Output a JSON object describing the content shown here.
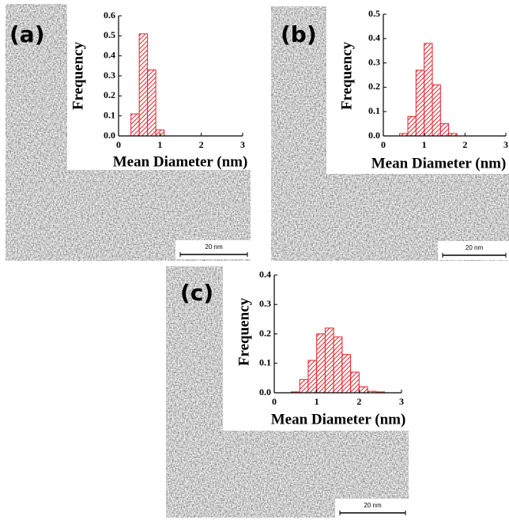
{
  "chart_data": [
    {
      "type": "histogram",
      "panel_label": "(a)",
      "scale_bar": "20 nm",
      "xlabel": "Mean Diameter (nm)",
      "ylabel": "Frequency",
      "bins": [
        0.3,
        0.5,
        0.7,
        0.9,
        1.1
      ],
      "counts": [
        0.11,
        0.51,
        0.33,
        0.03
      ],
      "color": "#e8202a",
      "xlim": [
        0,
        3
      ],
      "ylim": [
        0,
        0.6
      ],
      "xticks": [
        0,
        1,
        2,
        3
      ],
      "yticks": [
        {
          "value": 0,
          "label": "0.0"
        },
        0.1,
        0.2,
        0.3,
        0.4,
        0.5,
        0.6
      ]
    },
    {
      "type": "histogram",
      "panel_label": "(b)",
      "scale_bar": "20 nm",
      "xlabel": "Mean Diameter (nm)",
      "ylabel": "Frequency",
      "bins": [
        0.4,
        0.6,
        0.8,
        1.0,
        1.2,
        1.4,
        1.6,
        1.8
      ],
      "counts": [
        0.01,
        0.08,
        0.27,
        0.38,
        0.21,
        0.05,
        0.01
      ],
      "color": "#e8202a",
      "xlim": [
        0,
        3
      ],
      "ylim": [
        0,
        0.5
      ],
      "xticks": [
        0,
        1,
        2,
        3
      ],
      "yticks": [
        {
          "value": 0,
          "label": "0.0"
        },
        0.1,
        0.2,
        0.3,
        0.4,
        0.5
      ]
    },
    {
      "type": "histogram",
      "panel_label": "(c)",
      "scale_bar": "20 nm",
      "xlabel": "Mean Diameter (nm)",
      "ylabel": "Frequency",
      "bins": [
        0.4,
        0.6,
        0.8,
        1.0,
        1.2,
        1.4,
        1.6,
        1.8,
        2.0,
        2.2,
        2.4,
        2.6
      ],
      "counts": [
        0.003,
        0.045,
        0.11,
        0.2,
        0.22,
        0.19,
        0.13,
        0.07,
        0.02,
        0.005,
        0.003
      ],
      "color": "#e8202a",
      "xlim": [
        0,
        3
      ],
      "ylim": [
        0,
        0.4
      ],
      "xticks": [
        0,
        1,
        2,
        3
      ],
      "yticks": [
        {
          "value": 0,
          "label": "0.0"
        },
        0.1,
        0.2,
        0.3,
        0.4
      ]
    }
  ]
}
